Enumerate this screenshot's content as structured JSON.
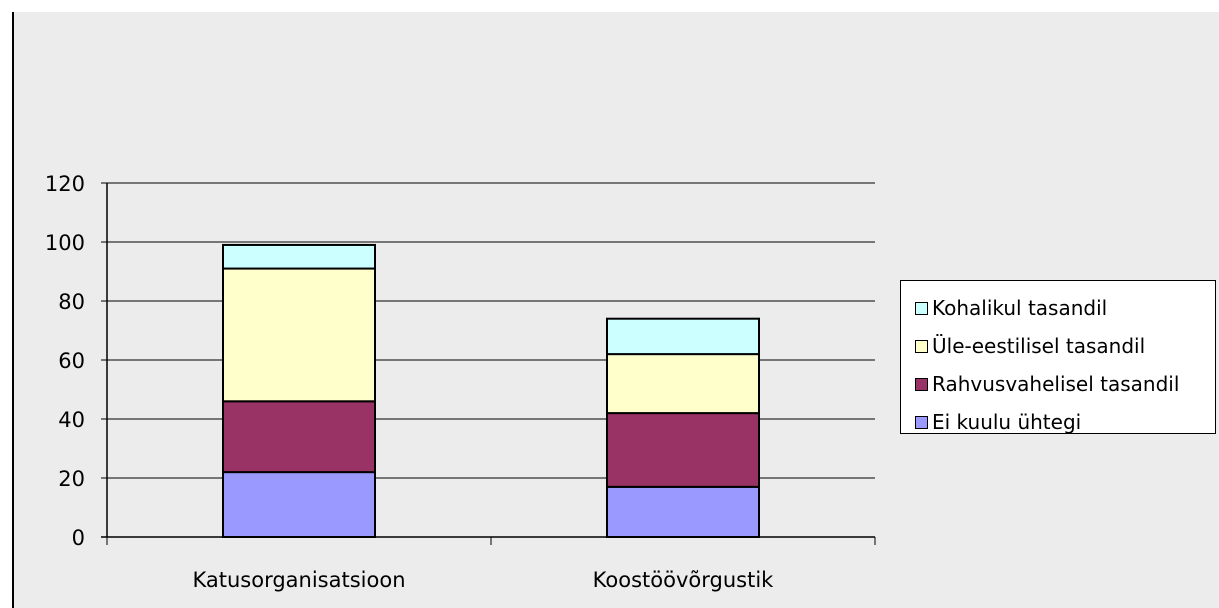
{
  "chart_data": {
    "type": "bar",
    "stacked": true,
    "categories": [
      "Katusorganisatsioon",
      "Koostöövõrgustik"
    ],
    "series": [
      {
        "name": "Ei kuulu ühtegi",
        "values": [
          22,
          17
        ],
        "color": "#9999ff"
      },
      {
        "name": "Rahvusvahelisel tasandil",
        "values": [
          24,
          25
        ],
        "color": "#993366"
      },
      {
        "name": "Üle-eestilisel tasandil",
        "values": [
          45,
          20
        ],
        "color": "#ffffcc"
      },
      {
        "name": "Kohalikul tasandil",
        "values": [
          8,
          12
        ],
        "color": "#ccffff"
      }
    ],
    "yticks": [
      "0",
      "20",
      "40",
      "60",
      "80",
      "100",
      "120"
    ],
    "ylim": [
      0,
      120
    ],
    "grid": true,
    "legend_position": "right",
    "title": "",
    "xlabel": "",
    "ylabel": ""
  }
}
